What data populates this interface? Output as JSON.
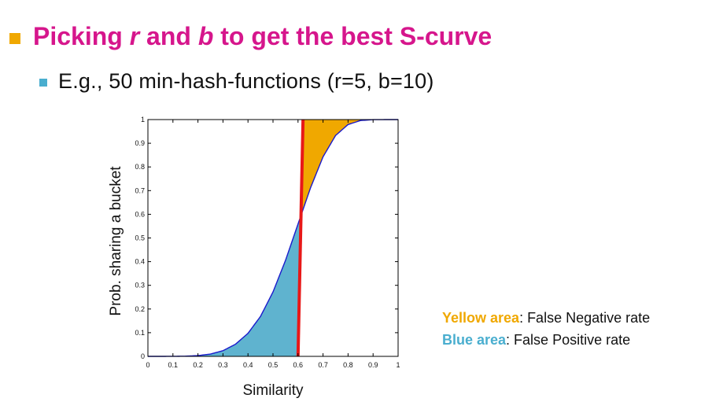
{
  "heading": {
    "part1": "Picking ",
    "r": "r",
    "part2": " and ",
    "b": "b",
    "part3": " to get the best S-curve"
  },
  "subheading": "E.g., 50 min-hash-functions  (r=5, b=10)",
  "legend": {
    "yellow_label": "Yellow area",
    "yellow_rest": ": False Negative rate",
    "blue_label": "Blue area",
    "blue_rest": ": False Positive rate"
  },
  "colors": {
    "title": "#d6168c",
    "title_bullet": "#f0a800",
    "sub_bullet": "#4aaecf",
    "yellow": "#f0a800",
    "blue": "#5fb3cf",
    "curve": "#1a1acc",
    "threshold": "#e81818"
  },
  "chart_data": {
    "type": "area",
    "xlabel": "Similarity",
    "ylabel": "Prob. sharing a bucket",
    "xlim": [
      0,
      1
    ],
    "ylim": [
      0,
      1
    ],
    "grid": false,
    "r": 5,
    "b": 10,
    "threshold": {
      "x_bottom": 0.6,
      "x_top": 0.62
    },
    "x_ticks": [
      "0",
      "0.1",
      "0.2",
      "0.3",
      "0.4",
      "0.5",
      "0.6",
      "0.7",
      "0.8",
      "0.9",
      "1"
    ],
    "y_ticks": [
      "0",
      "0.1",
      "0.2",
      "0.3",
      "0.4",
      "0.5",
      "0.6",
      "0.7",
      "0.8",
      "0.9",
      "1"
    ],
    "series": [
      {
        "name": "",
        "x": [
          0,
          0.05,
          0.1,
          0.15,
          0.2,
          0.25,
          0.3,
          0.35,
          0.4,
          0.45,
          0.5,
          0.55,
          0.6,
          0.65,
          0.7,
          0.75,
          0.8,
          0.85,
          0.9,
          0.95,
          1
        ],
        "values": [
          0,
          0,
          0.0001,
          0.0008,
          0.0032,
          0.0097,
          0.024,
          0.0512,
          0.0973,
          0.1687,
          0.272,
          0.4055,
          0.559,
          0.7118,
          0.8427,
          0.9327,
          0.9791,
          0.996,
          0.9996,
          1.0,
          1.0
        ]
      }
    ]
  }
}
